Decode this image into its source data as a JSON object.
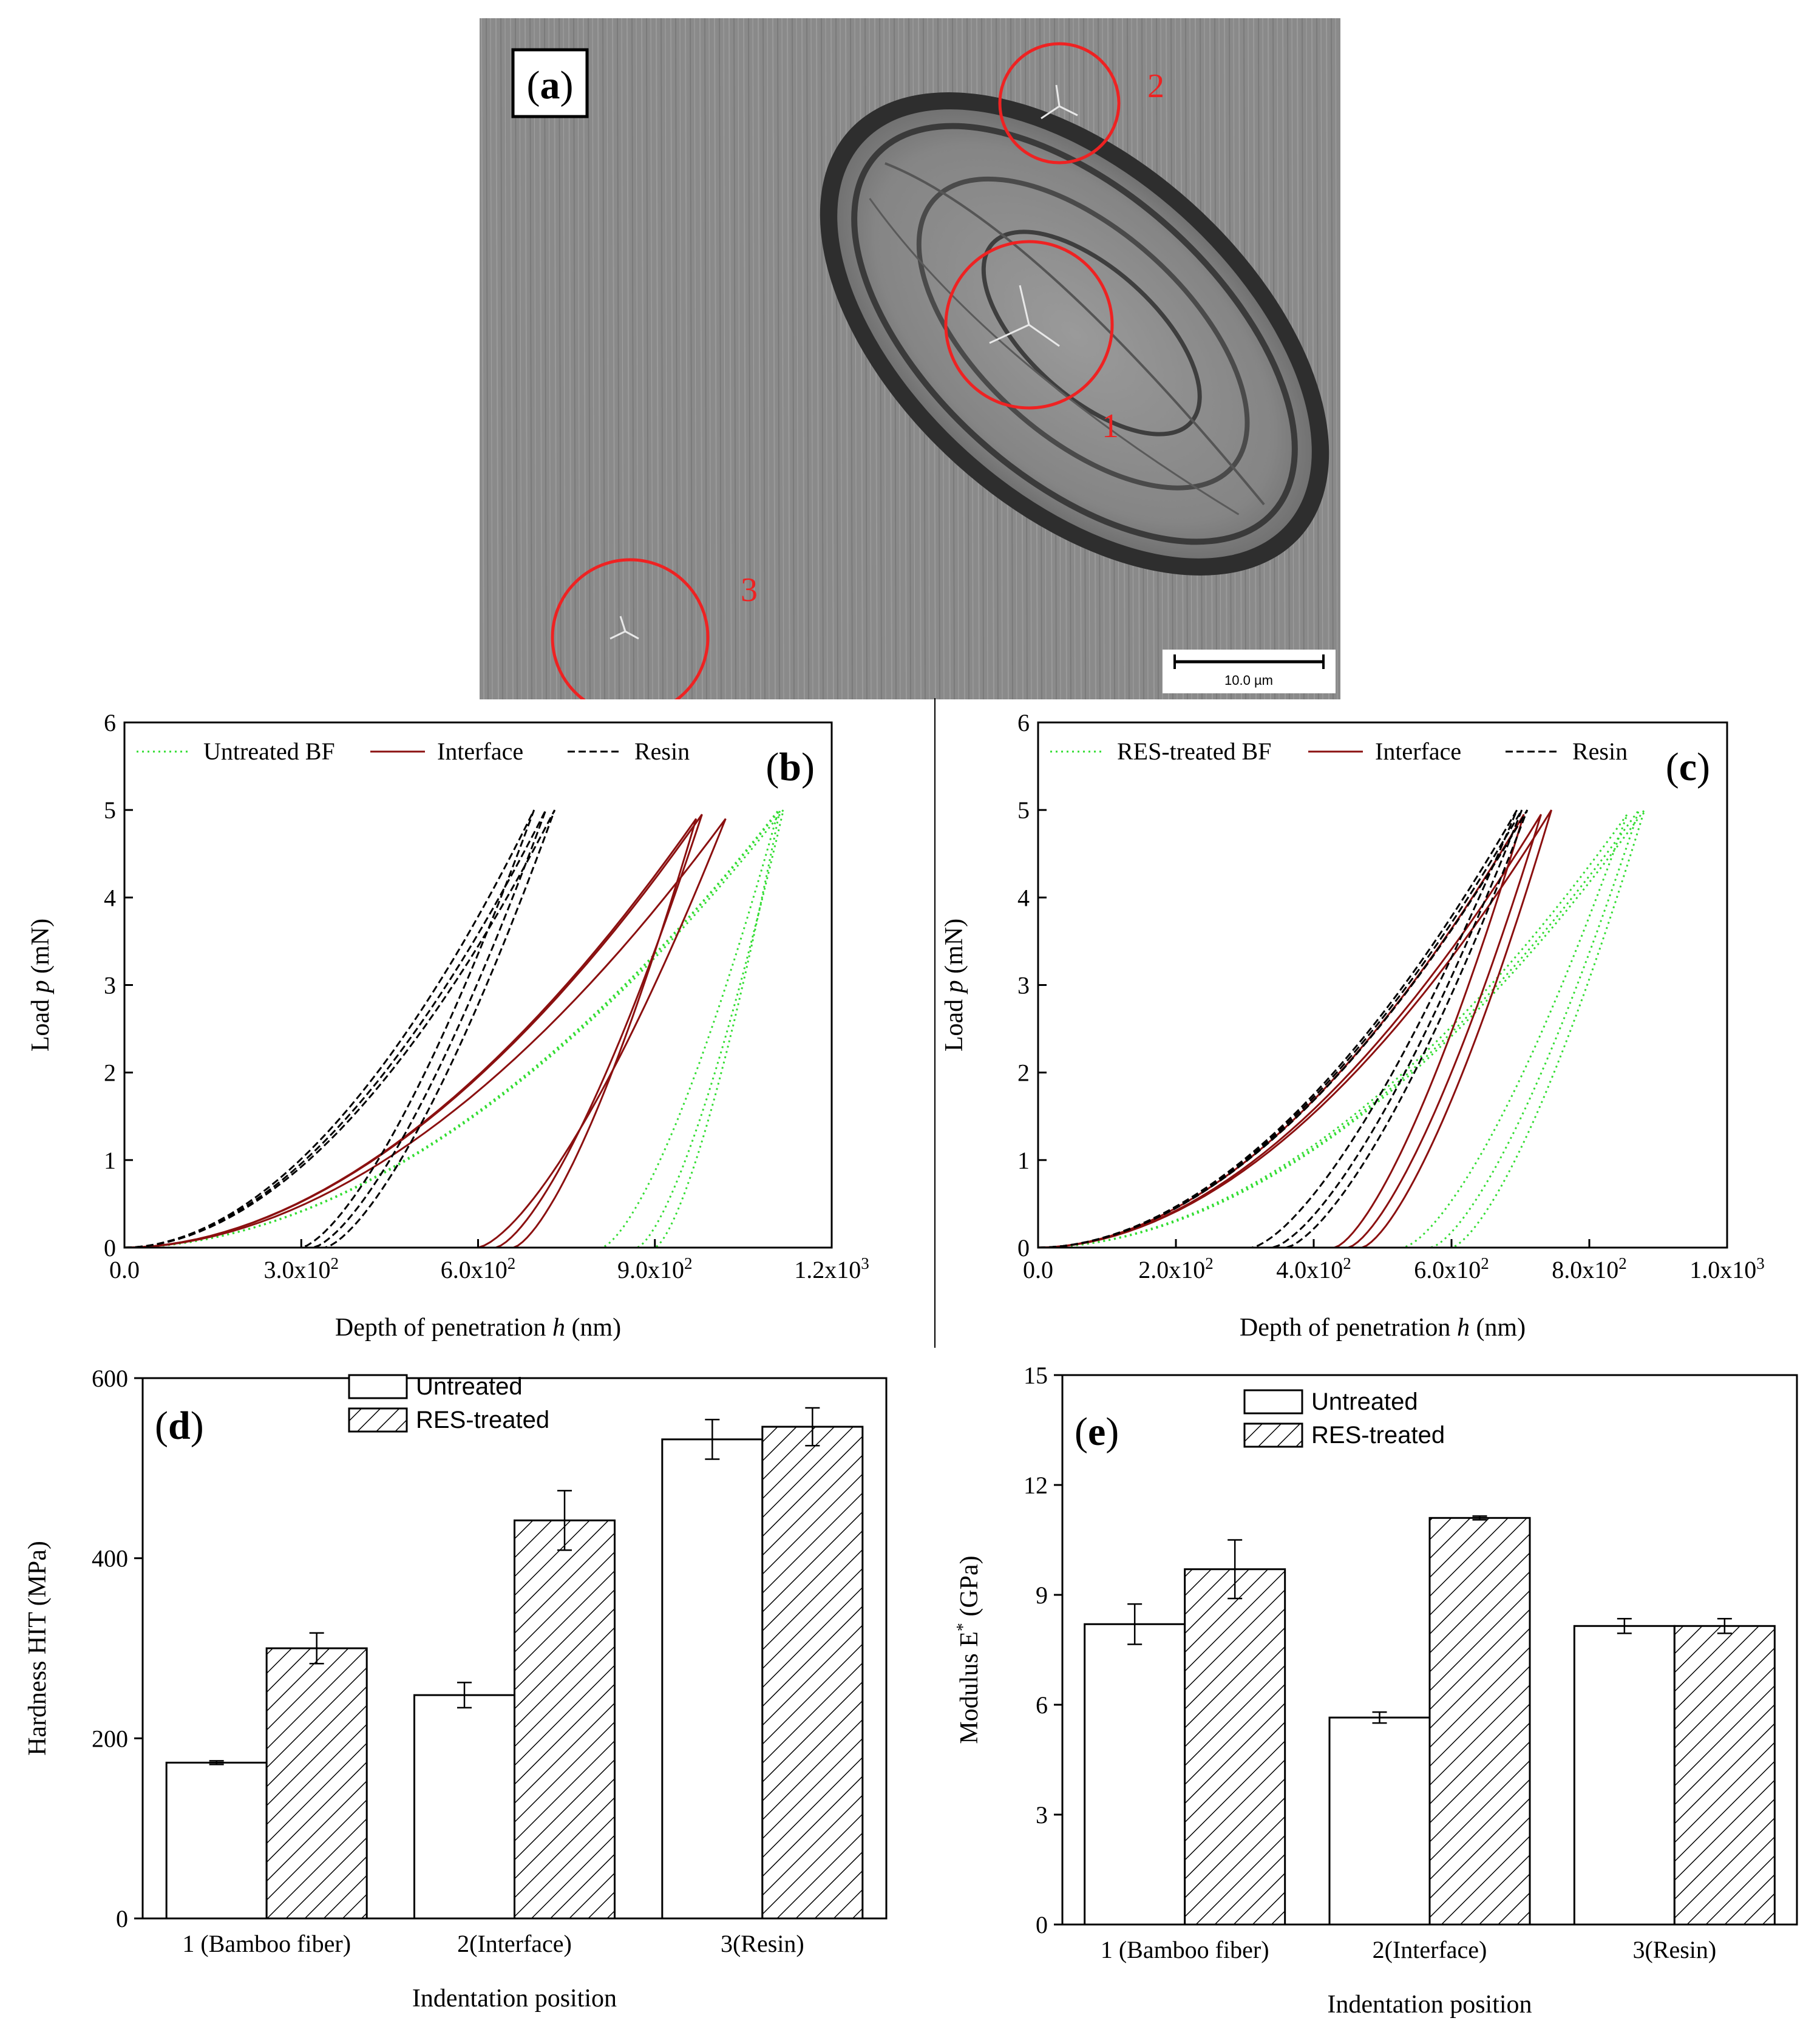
{
  "panels": {
    "a": {
      "label": "a",
      "markers": [
        "1",
        "2",
        "3"
      ],
      "scale_bar_label": "10.0 µm"
    },
    "b": {
      "label": "b",
      "legend": [
        "Untreated BF",
        "Interface",
        "Resin"
      ],
      "xlabel_prefix": "Depth of penetration ",
      "xlabel_var": "h",
      "xlabel_suffix": " (nm)",
      "ylabel_prefix": "Load ",
      "ylabel_var": "p",
      "ylabel_suffix": " (mN)"
    },
    "c": {
      "label": "c",
      "legend": [
        "RES-treated BF",
        "Interface",
        "Resin"
      ],
      "xlabel_prefix": "Depth of penetration ",
      "xlabel_var": "h",
      "xlabel_suffix": " (nm)",
      "ylabel_prefix": "Load ",
      "ylabel_var": "p",
      "ylabel_suffix": " (mN)"
    },
    "d": {
      "label": "d",
      "legend": [
        "Untreated",
        "RES-treated"
      ]
    },
    "e": {
      "label": "e",
      "legend": [
        "Untreated",
        "RES-treated"
      ]
    }
  },
  "colors": {
    "untreated_bf": "#33dd33",
    "interface": "#8b1010",
    "resin": "#000000",
    "marker_circle": "#ee2222"
  },
  "chart_data": [
    {
      "id": "b",
      "type": "line",
      "xlabel": "Depth of penetration h (nm)",
      "ylabel": "Load p (mN)",
      "xlim": [
        0,
        1200
      ],
      "ylim": [
        0,
        6
      ],
      "xticks": [
        0,
        300,
        600,
        900,
        1200
      ],
      "xtick_labels": [
        {
          "m": "0.0",
          "e": ""
        },
        {
          "m": "3.0x10",
          "e": "2"
        },
        {
          "m": "6.0x10",
          "e": "2"
        },
        {
          "m": "9.0x10",
          "e": "2"
        },
        {
          "m": "1.2x10",
          "e": "3"
        }
      ],
      "yticks": [
        0,
        1,
        2,
        3,
        4,
        5,
        6
      ],
      "series": [
        {
          "name": "Untreated BF",
          "style": "dotted",
          "color": "#33dd33",
          "curves": [
            {
              "hmax": 1110,
              "pmax": 5.0,
              "hf": 810
            },
            {
              "hmax": 1118,
              "pmax": 5.0,
              "hf": 870
            },
            {
              "hmax": 1112,
              "pmax": 5.0,
              "hf": 900
            }
          ]
        },
        {
          "name": "Interface",
          "style": "solid",
          "color": "#8b1010",
          "curves": [
            {
              "hmax": 1020,
              "pmax": 4.9,
              "hf": 600
            },
            {
              "hmax": 980,
              "pmax": 4.95,
              "hf": 630
            },
            {
              "hmax": 970,
              "pmax": 4.9,
              "hf": 660
            }
          ]
        },
        {
          "name": "Resin",
          "style": "dashed",
          "color": "#000000",
          "curves": [
            {
              "hmax": 695,
              "pmax": 5.0,
              "hf": 300
            },
            {
              "hmax": 715,
              "pmax": 5.0,
              "hf": 320
            },
            {
              "hmax": 730,
              "pmax": 5.0,
              "hf": 340
            }
          ]
        }
      ],
      "legend_position": "top"
    },
    {
      "id": "c",
      "type": "line",
      "xlabel": "Depth of penetration h (nm)",
      "ylabel": "Load p (mN)",
      "xlim": [
        0,
        1000
      ],
      "ylim": [
        0,
        6
      ],
      "xticks": [
        0,
        200,
        400,
        600,
        800,
        1000
      ],
      "xtick_labels": [
        {
          "m": "0.0",
          "e": ""
        },
        {
          "m": "2.0x10",
          "e": "2"
        },
        {
          "m": "4.0x10",
          "e": "2"
        },
        {
          "m": "6.0x10",
          "e": "2"
        },
        {
          "m": "8.0x10",
          "e": "2"
        },
        {
          "m": "1.0x10",
          "e": "3"
        }
      ],
      "yticks": [
        0,
        1,
        2,
        3,
        4,
        5,
        6
      ],
      "series": [
        {
          "name": "RES-treated BF",
          "style": "dotted",
          "color": "#33dd33",
          "curves": [
            {
              "hmax": 855,
              "pmax": 4.95,
              "hf": 530
            },
            {
              "hmax": 872,
              "pmax": 5.0,
              "hf": 570
            },
            {
              "hmax": 880,
              "pmax": 5.0,
              "hf": 600
            }
          ]
        },
        {
          "name": "Interface",
          "style": "solid",
          "color": "#8b1010",
          "curves": [
            {
              "hmax": 705,
              "pmax": 4.95,
              "hf": 430
            },
            {
              "hmax": 730,
              "pmax": 4.95,
              "hf": 450
            },
            {
              "hmax": 745,
              "pmax": 5.0,
              "hf": 470
            }
          ]
        },
        {
          "name": "Resin",
          "style": "dashed",
          "color": "#000000",
          "curves": [
            {
              "hmax": 695,
              "pmax": 5.0,
              "hf": 310
            },
            {
              "hmax": 702,
              "pmax": 5.0,
              "hf": 340
            },
            {
              "hmax": 710,
              "pmax": 5.0,
              "hf": 360
            }
          ]
        }
      ],
      "legend_position": "top"
    },
    {
      "id": "d",
      "type": "bar",
      "title_label": "d",
      "xlabel": "Indentation position",
      "ylabel": "Hardness HIT (MPa)",
      "ylim": [
        0,
        600
      ],
      "yticks": [
        0,
        200,
        400,
        600
      ],
      "categories": [
        "1 (Bamboo fiber)",
        "2(Interface)",
        "3(Resin)"
      ],
      "series": [
        {
          "name": "Untreated",
          "values": [
            173,
            248,
            532
          ],
          "errors": [
            2,
            14,
            22
          ]
        },
        {
          "name": "RES-treated",
          "values": [
            300,
            442,
            546
          ],
          "errors": [
            17,
            33,
            21
          ]
        }
      ],
      "legend_position": "top-center"
    },
    {
      "id": "e",
      "type": "bar",
      "xlabel": "Indentation position",
      "ylabel": "Modulus E* (GPa)",
      "ylim": [
        0,
        15
      ],
      "yticks": [
        0,
        3,
        6,
        9,
        12,
        15
      ],
      "categories": [
        "1 (Bamboo fiber)",
        "2(Interface)",
        "3(Resin)"
      ],
      "series": [
        {
          "name": "Untreated",
          "values": [
            8.2,
            5.65,
            8.15
          ],
          "errors": [
            0.55,
            0.15,
            0.2
          ]
        },
        {
          "name": "RES-treated",
          "values": [
            9.7,
            11.1,
            8.15
          ],
          "errors": [
            0.8,
            0.05,
            0.2
          ]
        }
      ],
      "legend_position": "top-center"
    }
  ]
}
